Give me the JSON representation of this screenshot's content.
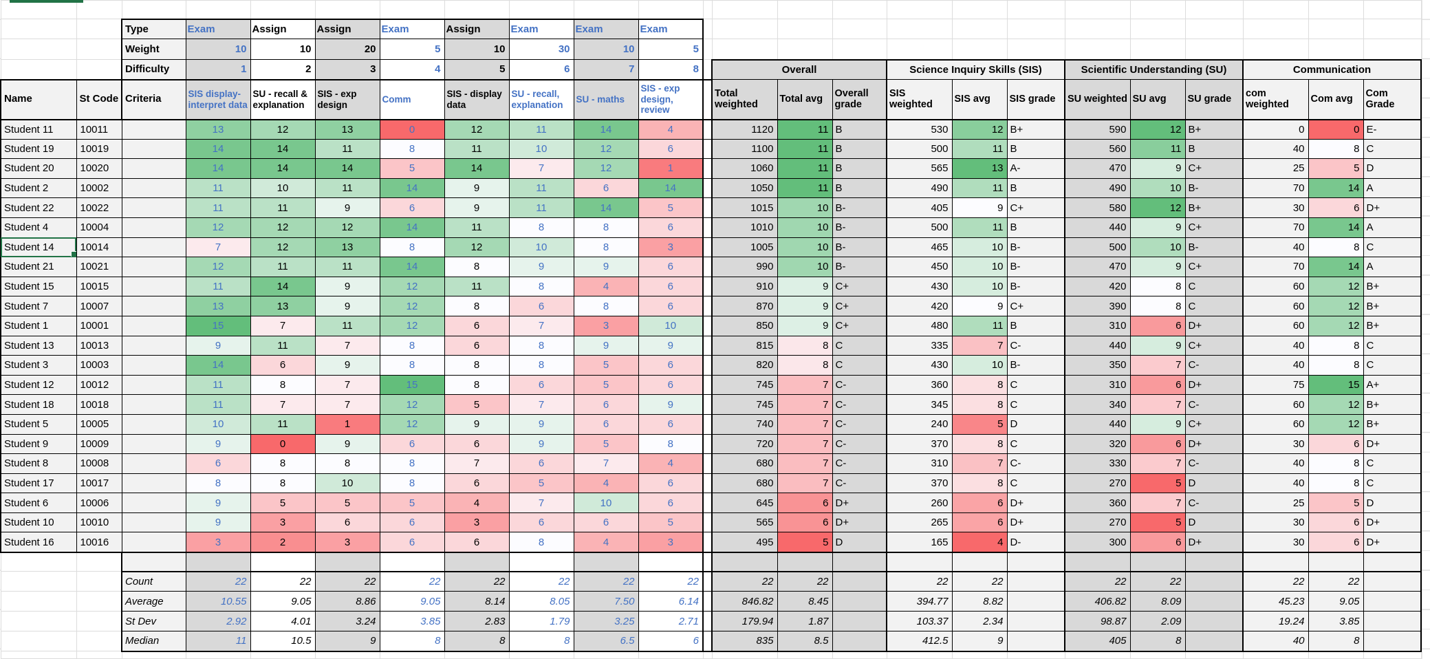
{
  "labels": {
    "type": "Type",
    "weight": "Weight",
    "difficulty": "Difficulty",
    "criteria": "Criteria",
    "name": "Name",
    "st_code": "St Code"
  },
  "assessments": [
    {
      "type": "Exam",
      "weight": 10,
      "difficulty": 1,
      "criteria": "SIS display-interpret data"
    },
    {
      "type": "Assign",
      "weight": 10,
      "difficulty": 2,
      "criteria": "SU - recall & explanation"
    },
    {
      "type": "Assign",
      "weight": 20,
      "difficulty": 3,
      "criteria": "SIS - exp design"
    },
    {
      "type": "Exam",
      "weight": 5,
      "difficulty": 4,
      "criteria": "Comm"
    },
    {
      "type": "Assign",
      "weight": 10,
      "difficulty": 5,
      "criteria": "SIS - display data"
    },
    {
      "type": "Exam",
      "weight": 30,
      "difficulty": 6,
      "criteria": "SU - recall, explanation"
    },
    {
      "type": "Exam",
      "weight": 10,
      "difficulty": 7,
      "criteria": "SU - maths"
    },
    {
      "type": "Exam",
      "weight": 5,
      "difficulty": 8,
      "criteria": "SIS - exp design, review"
    }
  ],
  "sections": [
    {
      "title": "Overall",
      "columns": [
        "Total weighted",
        "Total avg",
        "Overall grade"
      ]
    },
    {
      "title": "Science Inquiry Skills (SIS)",
      "columns": [
        "SIS weighted",
        "SIS avg",
        "SIS grade"
      ]
    },
    {
      "title": "Scientific Understanding (SU)",
      "columns": [
        "SU weighted",
        "SU avg",
        "SU grade"
      ]
    },
    {
      "title": "Communication",
      "columns": [
        "com weighted",
        "Com avg",
        "Com Grade"
      ]
    }
  ],
  "students": [
    {
      "name": "Student 11",
      "code": "10011",
      "scores": [
        13,
        12,
        13,
        0,
        12,
        11,
        14,
        4
      ],
      "overall": {
        "weighted": 1120,
        "avg": 11,
        "grade": "B"
      },
      "sis": {
        "weighted": 530,
        "avg": 12,
        "grade": "B+"
      },
      "su": {
        "weighted": 590,
        "avg": 12,
        "grade": "B+"
      },
      "com": {
        "weighted": 0,
        "avg": 0,
        "grade": "E-"
      }
    },
    {
      "name": "Student 19",
      "code": "10019",
      "scores": [
        14,
        14,
        11,
        8,
        11,
        10,
        12,
        6
      ],
      "overall": {
        "weighted": 1100,
        "avg": 11,
        "grade": "B"
      },
      "sis": {
        "weighted": 500,
        "avg": 11,
        "grade": "B"
      },
      "su": {
        "weighted": 560,
        "avg": 11,
        "grade": "B"
      },
      "com": {
        "weighted": 40,
        "avg": 8,
        "grade": "C"
      }
    },
    {
      "name": "Student 20",
      "code": "10020",
      "scores": [
        14,
        14,
        14,
        5,
        14,
        7,
        12,
        1
      ],
      "overall": {
        "weighted": 1060,
        "avg": 11,
        "grade": "B"
      },
      "sis": {
        "weighted": 565,
        "avg": 13,
        "grade": "A-"
      },
      "su": {
        "weighted": 470,
        "avg": 9,
        "grade": "C+"
      },
      "com": {
        "weighted": 25,
        "avg": 5,
        "grade": "D"
      }
    },
    {
      "name": "Student 2",
      "code": "10002",
      "scores": [
        11,
        10,
        11,
        14,
        9,
        11,
        6,
        14
      ],
      "overall": {
        "weighted": 1050,
        "avg": 11,
        "grade": "B"
      },
      "sis": {
        "weighted": 490,
        "avg": 11,
        "grade": "B"
      },
      "su": {
        "weighted": 490,
        "avg": 10,
        "grade": "B-"
      },
      "com": {
        "weighted": 70,
        "avg": 14,
        "grade": "A"
      }
    },
    {
      "name": "Student 22",
      "code": "10022",
      "scores": [
        11,
        11,
        9,
        6,
        9,
        11,
        14,
        5
      ],
      "overall": {
        "weighted": 1015,
        "avg": 10,
        "grade": "B-"
      },
      "sis": {
        "weighted": 405,
        "avg": 9,
        "grade": "C+"
      },
      "su": {
        "weighted": 580,
        "avg": 12,
        "grade": "B+"
      },
      "com": {
        "weighted": 30,
        "avg": 6,
        "grade": "D+"
      }
    },
    {
      "name": "Student 4",
      "code": "10004",
      "scores": [
        12,
        12,
        12,
        14,
        11,
        8,
        8,
        6
      ],
      "overall": {
        "weighted": 1010,
        "avg": 10,
        "grade": "B-"
      },
      "sis": {
        "weighted": 500,
        "avg": 11,
        "grade": "B"
      },
      "su": {
        "weighted": 440,
        "avg": 9,
        "grade": "C+"
      },
      "com": {
        "weighted": 70,
        "avg": 14,
        "grade": "A"
      }
    },
    {
      "name": "Student 14",
      "code": "10014",
      "scores": [
        7,
        12,
        13,
        8,
        12,
        10,
        8,
        3
      ],
      "overall": {
        "weighted": 1005,
        "avg": 10,
        "grade": "B-"
      },
      "sis": {
        "weighted": 465,
        "avg": 10,
        "grade": "B-"
      },
      "su": {
        "weighted": 500,
        "avg": 10,
        "grade": "B-"
      },
      "com": {
        "weighted": 40,
        "avg": 8,
        "grade": "C"
      }
    },
    {
      "name": "Student 21",
      "code": "10021",
      "scores": [
        12,
        11,
        11,
        14,
        8,
        9,
        9,
        6
      ],
      "overall": {
        "weighted": 990,
        "avg": 10,
        "grade": "B-"
      },
      "sis": {
        "weighted": 450,
        "avg": 10,
        "grade": "B-"
      },
      "su": {
        "weighted": 470,
        "avg": 9,
        "grade": "C+"
      },
      "com": {
        "weighted": 70,
        "avg": 14,
        "grade": "A"
      }
    },
    {
      "name": "Student 15",
      "code": "10015",
      "scores": [
        11,
        14,
        9,
        12,
        11,
        8,
        4,
        6
      ],
      "overall": {
        "weighted": 910,
        "avg": 9,
        "grade": "C+"
      },
      "sis": {
        "weighted": 430,
        "avg": 10,
        "grade": "B-"
      },
      "su": {
        "weighted": 420,
        "avg": 8,
        "grade": "C"
      },
      "com": {
        "weighted": 60,
        "avg": 12,
        "grade": "B+"
      }
    },
    {
      "name": "Student 7",
      "code": "10007",
      "scores": [
        13,
        13,
        9,
        12,
        8,
        6,
        8,
        6
      ],
      "overall": {
        "weighted": 870,
        "avg": 9,
        "grade": "C+"
      },
      "sis": {
        "weighted": 420,
        "avg": 9,
        "grade": "C+"
      },
      "su": {
        "weighted": 390,
        "avg": 8,
        "grade": "C"
      },
      "com": {
        "weighted": 60,
        "avg": 12,
        "grade": "B+"
      }
    },
    {
      "name": "Student 1",
      "code": "10001",
      "scores": [
        15,
        7,
        11,
        12,
        6,
        7,
        3,
        10
      ],
      "overall": {
        "weighted": 850,
        "avg": 9,
        "grade": "C+"
      },
      "sis": {
        "weighted": 480,
        "avg": 11,
        "grade": "B"
      },
      "su": {
        "weighted": 310,
        "avg": 6,
        "grade": "D+"
      },
      "com": {
        "weighted": 60,
        "avg": 12,
        "grade": "B+"
      }
    },
    {
      "name": "Student 13",
      "code": "10013",
      "scores": [
        9,
        11,
        7,
        8,
        6,
        8,
        9,
        9
      ],
      "overall": {
        "weighted": 815,
        "avg": 8,
        "grade": "C"
      },
      "sis": {
        "weighted": 335,
        "avg": 7,
        "grade": "C-"
      },
      "su": {
        "weighted": 440,
        "avg": 9,
        "grade": "C+"
      },
      "com": {
        "weighted": 40,
        "avg": 8,
        "grade": "C"
      }
    },
    {
      "name": "Student 3",
      "code": "10003",
      "scores": [
        14,
        6,
        9,
        8,
        8,
        8,
        5,
        6
      ],
      "overall": {
        "weighted": 820,
        "avg": 8,
        "grade": "C"
      },
      "sis": {
        "weighted": 430,
        "avg": 10,
        "grade": "B-"
      },
      "su": {
        "weighted": 350,
        "avg": 7,
        "grade": "C-"
      },
      "com": {
        "weighted": 40,
        "avg": 8,
        "grade": "C"
      }
    },
    {
      "name": "Student 12",
      "code": "10012",
      "scores": [
        11,
        8,
        7,
        15,
        8,
        6,
        5,
        6
      ],
      "overall": {
        "weighted": 745,
        "avg": 7,
        "grade": "C-"
      },
      "sis": {
        "weighted": 360,
        "avg": 8,
        "grade": "C"
      },
      "su": {
        "weighted": 310,
        "avg": 6,
        "grade": "D+"
      },
      "com": {
        "weighted": 75,
        "avg": 15,
        "grade": "A+"
      }
    },
    {
      "name": "Student 18",
      "code": "10018",
      "scores": [
        11,
        7,
        7,
        12,
        5,
        7,
        6,
        9
      ],
      "overall": {
        "weighted": 745,
        "avg": 7,
        "grade": "C-"
      },
      "sis": {
        "weighted": 345,
        "avg": 8,
        "grade": "C"
      },
      "su": {
        "weighted": 340,
        "avg": 7,
        "grade": "C-"
      },
      "com": {
        "weighted": 60,
        "avg": 12,
        "grade": "B+"
      }
    },
    {
      "name": "Student 5",
      "code": "10005",
      "scores": [
        10,
        11,
        1,
        12,
        9,
        9,
        6,
        6
      ],
      "overall": {
        "weighted": 740,
        "avg": 7,
        "grade": "C-"
      },
      "sis": {
        "weighted": 240,
        "avg": 5,
        "grade": "D"
      },
      "su": {
        "weighted": 440,
        "avg": 9,
        "grade": "C+"
      },
      "com": {
        "weighted": 60,
        "avg": 12,
        "grade": "B+"
      }
    },
    {
      "name": "Student 9",
      "code": "10009",
      "scores": [
        9,
        0,
        9,
        6,
        6,
        9,
        5,
        8
      ],
      "overall": {
        "weighted": 720,
        "avg": 7,
        "grade": "C-"
      },
      "sis": {
        "weighted": 370,
        "avg": 8,
        "grade": "C"
      },
      "su": {
        "weighted": 320,
        "avg": 6,
        "grade": "D+"
      },
      "com": {
        "weighted": 30,
        "avg": 6,
        "grade": "D+"
      }
    },
    {
      "name": "Student 8",
      "code": "10008",
      "scores": [
        6,
        8,
        8,
        8,
        7,
        6,
        7,
        4
      ],
      "overall": {
        "weighted": 680,
        "avg": 7,
        "grade": "C-"
      },
      "sis": {
        "weighted": 310,
        "avg": 7,
        "grade": "C-"
      },
      "su": {
        "weighted": 330,
        "avg": 7,
        "grade": "C-"
      },
      "com": {
        "weighted": 40,
        "avg": 8,
        "grade": "C"
      }
    },
    {
      "name": "Student 17",
      "code": "10017",
      "scores": [
        8,
        8,
        10,
        8,
        6,
        5,
        4,
        6
      ],
      "overall": {
        "weighted": 680,
        "avg": 7,
        "grade": "C-"
      },
      "sis": {
        "weighted": 370,
        "avg": 8,
        "grade": "C"
      },
      "su": {
        "weighted": 270,
        "avg": 5,
        "grade": "D"
      },
      "com": {
        "weighted": 40,
        "avg": 8,
        "grade": "C"
      }
    },
    {
      "name": "Student 6",
      "code": "10006",
      "scores": [
        9,
        5,
        5,
        5,
        4,
        7,
        10,
        6
      ],
      "overall": {
        "weighted": 645,
        "avg": 6,
        "grade": "D+"
      },
      "sis": {
        "weighted": 260,
        "avg": 6,
        "grade": "D+"
      },
      "su": {
        "weighted": 360,
        "avg": 7,
        "grade": "C-"
      },
      "com": {
        "weighted": 25,
        "avg": 5,
        "grade": "D"
      }
    },
    {
      "name": "Student 10",
      "code": "10010",
      "scores": [
        9,
        3,
        6,
        6,
        3,
        6,
        6,
        5
      ],
      "overall": {
        "weighted": 565,
        "avg": 6,
        "grade": "D+"
      },
      "sis": {
        "weighted": 265,
        "avg": 6,
        "grade": "D+"
      },
      "su": {
        "weighted": 270,
        "avg": 5,
        "grade": "D"
      },
      "com": {
        "weighted": 30,
        "avg": 6,
        "grade": "D+"
      }
    },
    {
      "name": "Student 16",
      "code": "10016",
      "scores": [
        3,
        2,
        3,
        6,
        6,
        8,
        4,
        3
      ],
      "overall": {
        "weighted": 495,
        "avg": 5,
        "grade": "D"
      },
      "sis": {
        "weighted": 165,
        "avg": 4,
        "grade": "D-"
      },
      "su": {
        "weighted": 300,
        "avg": 6,
        "grade": "D+"
      },
      "com": {
        "weighted": 30,
        "avg": 6,
        "grade": "D+"
      }
    }
  ],
  "summary": {
    "rows": [
      {
        "label": "Count",
        "scores": [
          "22",
          "22",
          "22",
          "22",
          "22",
          "22",
          "22",
          "22"
        ],
        "overall": [
          "22",
          "22",
          ""
        ],
        "sis": [
          "22",
          "22",
          ""
        ],
        "su": [
          "22",
          "22",
          ""
        ],
        "com": [
          "22",
          "22",
          ""
        ]
      },
      {
        "label": "Average",
        "scores": [
          "10.55",
          "9.05",
          "8.86",
          "9.05",
          "8.14",
          "8.05",
          "7.50",
          "6.14"
        ],
        "overall": [
          "846.82",
          "8.45",
          ""
        ],
        "sis": [
          "394.77",
          "8.82",
          ""
        ],
        "su": [
          "406.82",
          "8.09",
          ""
        ],
        "com": [
          "45.23",
          "9.05",
          ""
        ]
      },
      {
        "label": "St Dev",
        "scores": [
          "2.92",
          "4.01",
          "3.24",
          "3.85",
          "2.83",
          "1.79",
          "3.25",
          "2.71"
        ],
        "overall": [
          "179.94",
          "1.87",
          ""
        ],
        "sis": [
          "103.37",
          "2.34",
          ""
        ],
        "su": [
          "98.87",
          "2.09",
          ""
        ],
        "com": [
          "19.24",
          "3.85",
          ""
        ]
      },
      {
        "label": "Median",
        "scores": [
          "11",
          "10.5",
          "9",
          "8",
          "8",
          "8",
          "6.5",
          "6"
        ],
        "overall": [
          "835",
          "8.5",
          ""
        ],
        "sis": [
          "412.5",
          "9",
          ""
        ],
        "su": [
          "405",
          "8",
          ""
        ],
        "com": [
          "40",
          "8",
          ""
        ]
      }
    ]
  },
  "selection": {
    "active_cell_student": "Student 14",
    "active_cell_column": "Name"
  },
  "colors": {
    "exam_text_blue": "#4472C4",
    "stripe_dark": "#D9D9D9",
    "stripe_light": "#F2F2F2",
    "selection_green": "#217346",
    "border_black": "#000000",
    "gridline_grey": "#DCDCDC"
  },
  "color_scales": {
    "red": "#F8696B",
    "mid_color": "#FCFCFF",
    "green": "#63BE7B",
    "scores": {
      "min": 0,
      "mid": 8,
      "max": 15
    },
    "avgs": [
      {
        "min": 5,
        "mid": 8.5,
        "max": 11
      },
      {
        "min": 4,
        "mid": 9,
        "max": 13
      },
      {
        "min": 5,
        "mid": 8,
        "max": 12
      },
      {
        "min": 0,
        "mid": 8,
        "max": 15
      }
    ]
  }
}
